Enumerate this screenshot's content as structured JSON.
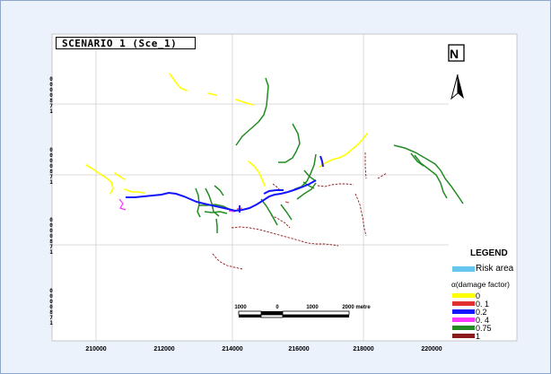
{
  "map": {
    "title": "SCENARIO 1  (Sce_1)",
    "north_label": "N",
    "x_ticks": [
      "210000",
      "212000",
      "214000",
      "216000",
      "218000",
      "220000"
    ],
    "y_ticks": [
      "0000871",
      "0000871",
      "0000871",
      "0000871"
    ],
    "scale_labels": [
      "1000",
      "0",
      "1000",
      "2000 metre"
    ]
  },
  "legend": {
    "title": "LEGEND",
    "risk_label": "Risk area",
    "risk_color": "#66c6f0",
    "factor_title": "α(damage factor)",
    "items": [
      {
        "label": "0",
        "color": "#ffff00"
      },
      {
        "label": "0. 1",
        "color": "#e03030"
      },
      {
        "label": "0.2",
        "color": "#1414ff"
      },
      {
        "label": "0. 4",
        "color": "#ff33ff"
      },
      {
        "label": "0.75",
        "color": "#228b22"
      },
      {
        "label": "1",
        "color": "#8b1a1a"
      }
    ]
  }
}
